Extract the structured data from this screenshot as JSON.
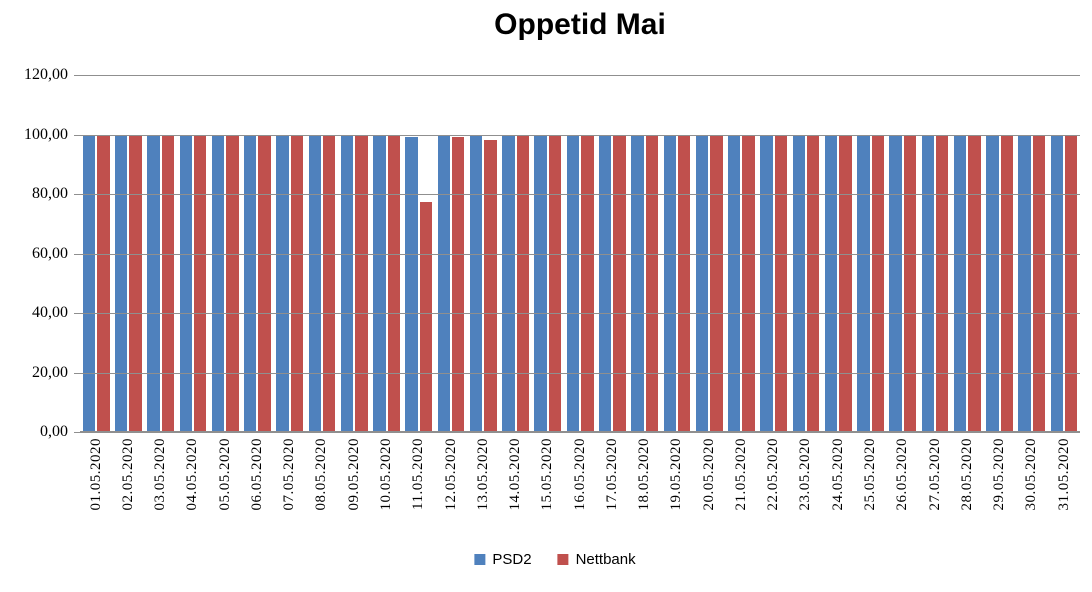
{
  "chart_data": {
    "type": "bar",
    "title": "Oppetid Mai",
    "categories": [
      "01.05.2020",
      "02.05.2020",
      "03.05.2020",
      "04.05.2020",
      "05.05.2020",
      "06.05.2020",
      "07.05.2020",
      "08.05.2020",
      "09.05.2020",
      "10.05.2020",
      "11.05.2020",
      "12.05.2020",
      "13.05.2020",
      "14.05.2020",
      "15.05.2020",
      "16.05.2020",
      "17.05.2020",
      "18.05.2020",
      "19.05.2020",
      "20.05.2020",
      "21.05.2020",
      "22.05.2020",
      "23.05.2020",
      "24.05.2020",
      "25.05.2020",
      "26.05.2020",
      "27.05.2020",
      "28.05.2020",
      "29.05.2020",
      "30.05.2020",
      "31.05.2020"
    ],
    "series": [
      {
        "name": "PSD2",
        "color": "#4F81BD",
        "values": [
          100,
          100,
          100,
          100,
          100,
          100,
          100,
          100,
          100,
          100,
          99,
          100,
          100,
          100,
          100,
          100,
          100,
          100,
          100,
          100,
          100,
          100,
          100,
          100,
          100,
          100,
          100,
          100,
          100,
          100,
          100
        ]
      },
      {
        "name": "Nettbank",
        "color": "#C0504D",
        "values": [
          100,
          100,
          100,
          100,
          100,
          99.4,
          100,
          100,
          100,
          100,
          77.4,
          99,
          98,
          99.7,
          99.7,
          100,
          100,
          99.7,
          100,
          99.4,
          100,
          100,
          100,
          100,
          100,
          100,
          99.4,
          100,
          100,
          100,
          100
        ]
      }
    ],
    "xlabel": "",
    "ylabel": "",
    "ylim": [
      0,
      120
    ],
    "ytick_step": 20,
    "y_tick_labels": [
      "0,00",
      "20,00",
      "40,00",
      "60,00",
      "80,00",
      "100,00",
      "120,00"
    ],
    "grid": true,
    "gridlines_over_bars": true,
    "legend_position": "bottom"
  },
  "colors": {
    "gridline": "#8F8F8F",
    "axis": "#8F8F8F",
    "text": "#000000",
    "background": "#FFFFFF"
  }
}
